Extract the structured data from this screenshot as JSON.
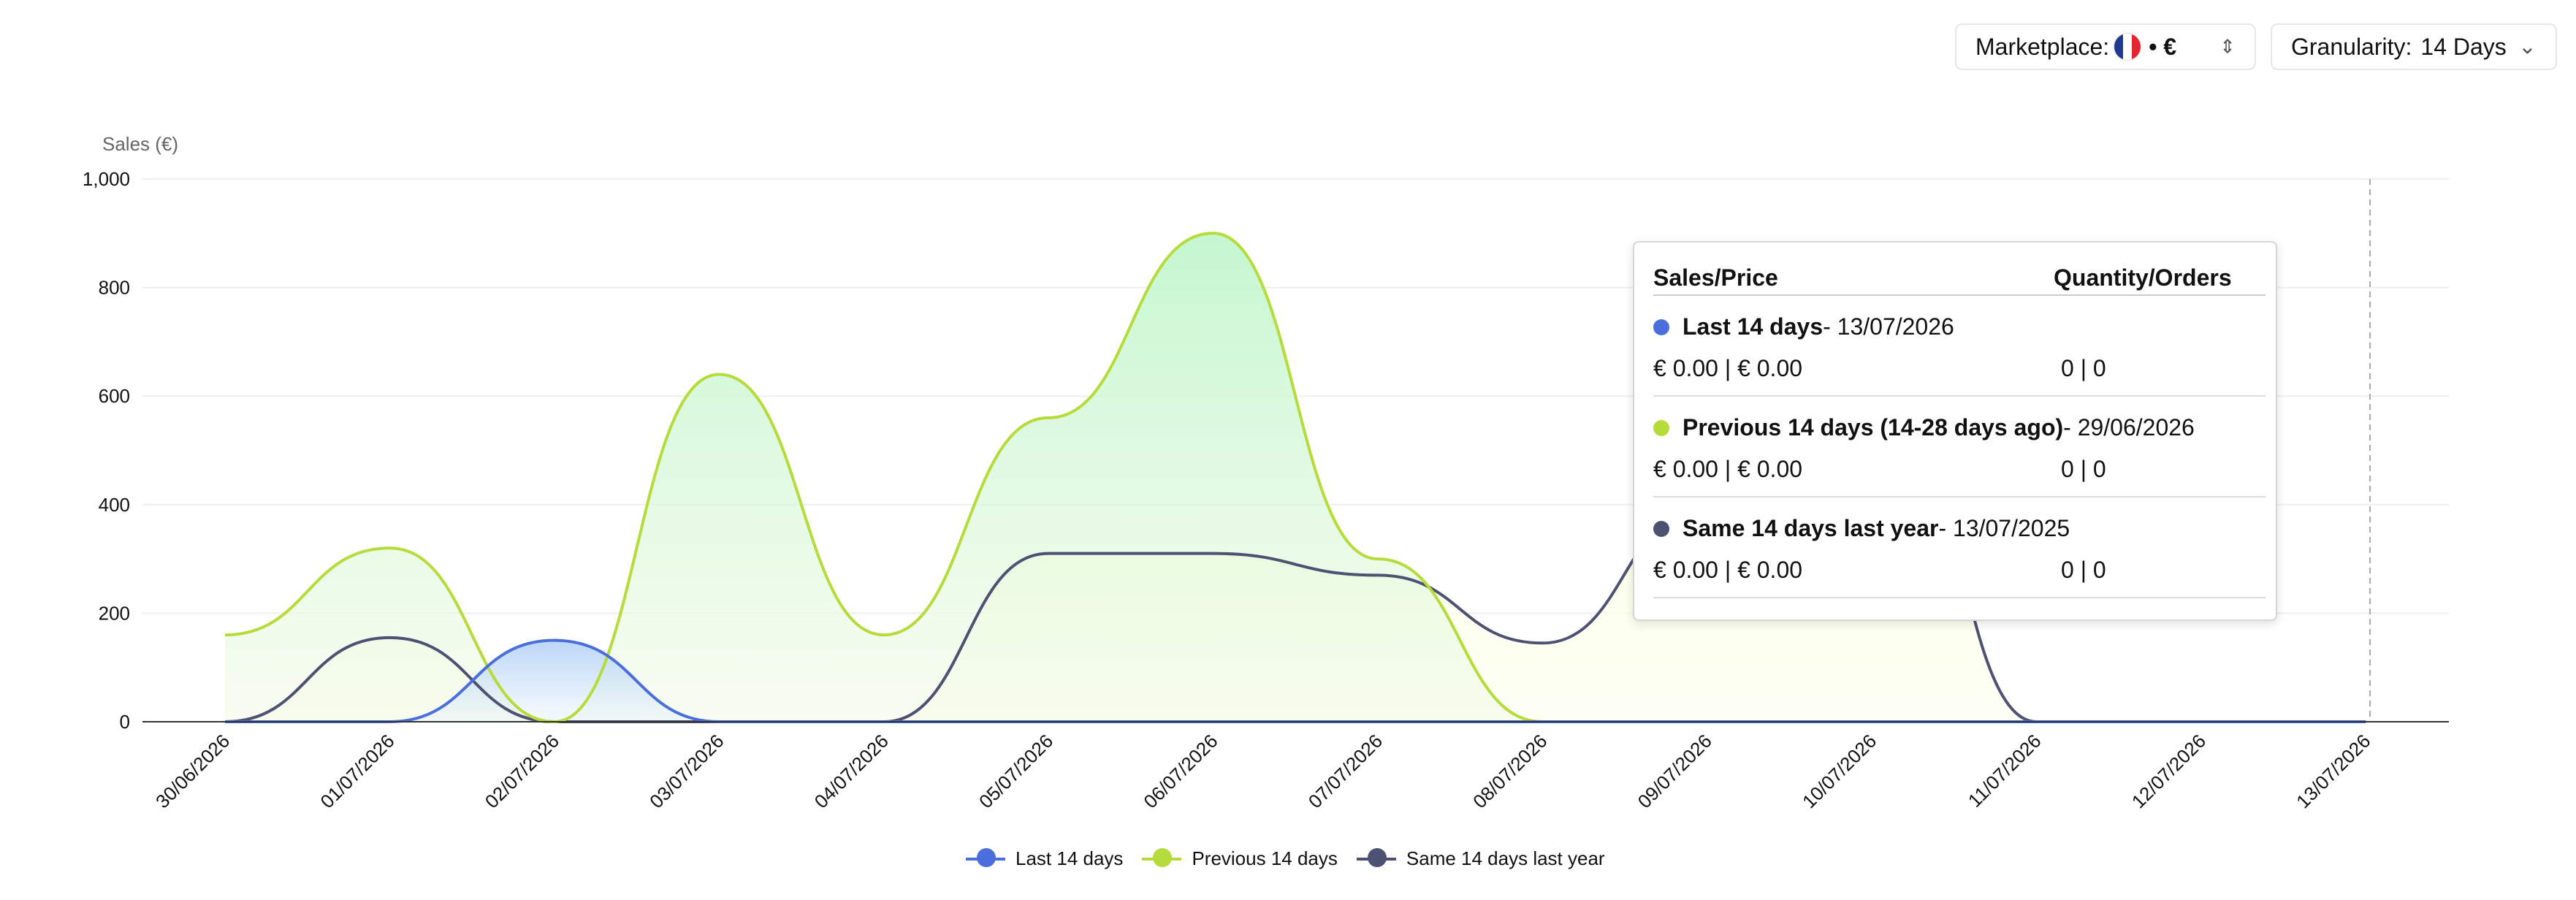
{
  "controls": {
    "marketplace_label": "Marketplace:",
    "marketplace_currency": "• €",
    "marketplace_flag": [
      "#1d3a8f",
      "#ffffff",
      "#e3262f"
    ],
    "granularity_label": "Granularity:",
    "granularity_value": "14 Days"
  },
  "tooltip": {
    "col_left": "Sales/Price",
    "col_right": "Quantity/Orders",
    "sections": [
      {
        "name": "Last 14 days",
        "date": " - 13/07/2026",
        "sales": "€ 0.00 | € 0.00",
        "qty": "0 | 0",
        "color": "#4a6fdc"
      },
      {
        "name": "Previous 14 days (14-28 days ago)",
        "date": " - 29/06/2026",
        "sales": "€ 0.00 | € 0.00",
        "qty": "0 | 0",
        "color": "#b5dc3a"
      },
      {
        "name": "Same 14 days last year",
        "date": " - 13/07/2025",
        "sales": "€ 0.00 | € 0.00",
        "qty": "0 | 0",
        "color": "#4e5272"
      }
    ]
  },
  "chart_data": {
    "type": "area",
    "ylabel": "Sales (€)",
    "ylim": [
      0,
      1000
    ],
    "yticks": [
      0,
      200,
      400,
      600,
      800,
      1000
    ],
    "ytick_labels": [
      "0",
      "200",
      "400",
      "600",
      "800",
      "1,000"
    ],
    "categories": [
      "30/06/2026",
      "01/07/2026",
      "02/07/2026",
      "03/07/2026",
      "04/07/2026",
      "05/07/2026",
      "06/07/2026",
      "07/07/2026",
      "08/07/2026",
      "09/07/2026",
      "10/07/2026",
      "11/07/2026",
      "12/07/2026",
      "13/07/2026"
    ],
    "grid": true,
    "legend_position": "bottom",
    "series": [
      {
        "name": "Last 14 days",
        "color": "#4a6fdc",
        "values": [
          0,
          0,
          150,
          0,
          0,
          0,
          0,
          0,
          0,
          0,
          0,
          0,
          0,
          0
        ]
      },
      {
        "name": "Previous 14 days",
        "color": "#b5dc3a",
        "values": [
          160,
          320,
          0,
          640,
          160,
          560,
          900,
          300,
          0,
          0,
          0,
          0,
          null,
          null
        ]
      },
      {
        "name": "Same 14 days last year",
        "color": "#4e5272",
        "values": [
          0,
          155,
          0,
          0,
          0,
          310,
          310,
          270,
          145,
          400,
          700,
          0,
          0,
          0
        ]
      }
    ]
  }
}
